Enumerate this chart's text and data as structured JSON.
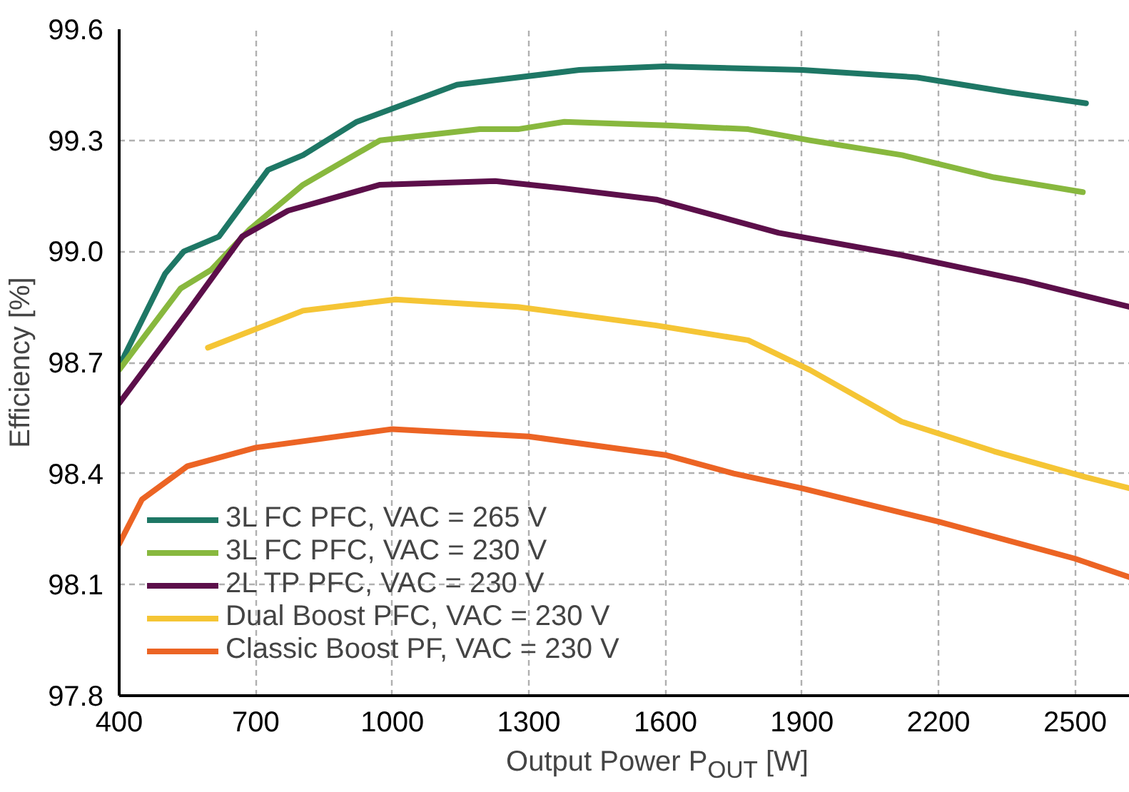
{
  "chart_data": {
    "type": "line",
    "xlabel": "Output Power P$_{OUT}$ [W]",
    "ylabel": "Efficiency [%]",
    "xlim": [
      400,
      2620
    ],
    "ylim": [
      97.8,
      99.6
    ],
    "xticks": [
      400,
      700,
      1000,
      1300,
      1600,
      1900,
      2200,
      2500
    ],
    "yticks": [
      {
        "value": 97.8,
        "label": "97.8"
      },
      {
        "value": 98.1,
        "label": "98.1"
      },
      {
        "value": 98.4,
        "label": "98.4"
      },
      {
        "value": 98.7,
        "label": "98.7"
      },
      {
        "value": 99.0,
        "label": "99.0"
      },
      {
        "value": 99.3,
        "label": "99.3"
      },
      {
        "value": 99.6,
        "label": "99.6"
      }
    ],
    "grid": true,
    "legend": "bottom left",
    "marker": "none",
    "line_style": "solid",
    "series": [
      {
        "name": "3L FC PFC, VAC = 265 V",
        "color": "#1e7765",
        "x": [
          400,
          501,
          542,
          619,
          727,
          804,
          922,
          1142,
          1411,
          1597,
          1900,
          2153,
          2355,
          2524
        ],
        "values": [
          98.69,
          98.94,
          99.0,
          99.04,
          99.22,
          99.26,
          99.35,
          99.45,
          99.49,
          99.5,
          99.49,
          99.47,
          99.43,
          99.4
        ]
      },
      {
        "name": "3L FC PFC, VAC = 230 V",
        "color": "#88b83e",
        "x": [
          400,
          535,
          602,
          687,
          804,
          973,
          1192,
          1276,
          1378,
          1613,
          1782,
          1917,
          2120,
          2322,
          2517
        ],
        "values": [
          98.68,
          98.9,
          98.95,
          99.06,
          99.18,
          99.3,
          99.33,
          99.33,
          99.35,
          99.34,
          99.33,
          99.3,
          99.26,
          99.2,
          99.16
        ]
      },
      {
        "name": "2L TP PFC, VAC = 230 V",
        "color": "#5c0f4a",
        "x": [
          400,
          552,
          670,
          771,
          973,
          1226,
          1378,
          1580,
          1849,
          2119,
          2389,
          2620
        ],
        "values": [
          98.59,
          98.84,
          99.04,
          99.11,
          99.18,
          99.19,
          99.17,
          99.14,
          99.05,
          98.99,
          98.92,
          98.85
        ]
      },
      {
        "name": "Dual Boost PFC, VAC = 230 V",
        "color": "#f5c535",
        "x": [
          595,
          804,
          1007,
          1276,
          1580,
          1782,
          1917,
          2119,
          2322,
          2524,
          2620
        ],
        "values": [
          98.74,
          98.84,
          98.87,
          98.85,
          98.8,
          98.76,
          98.68,
          98.54,
          98.46,
          98.39,
          98.36
        ]
      },
      {
        "name": "Classic Boost PF, VAC = 230 V",
        "color": "#ec6424",
        "x": [
          400,
          450,
          550,
          700,
          1000,
          1300,
          1600,
          1750,
          1900,
          2200,
          2500,
          2620
        ],
        "values": [
          98.21,
          98.33,
          98.42,
          98.47,
          98.52,
          98.5,
          98.45,
          98.4,
          98.36,
          98.27,
          98.17,
          98.12
        ]
      }
    ]
  }
}
